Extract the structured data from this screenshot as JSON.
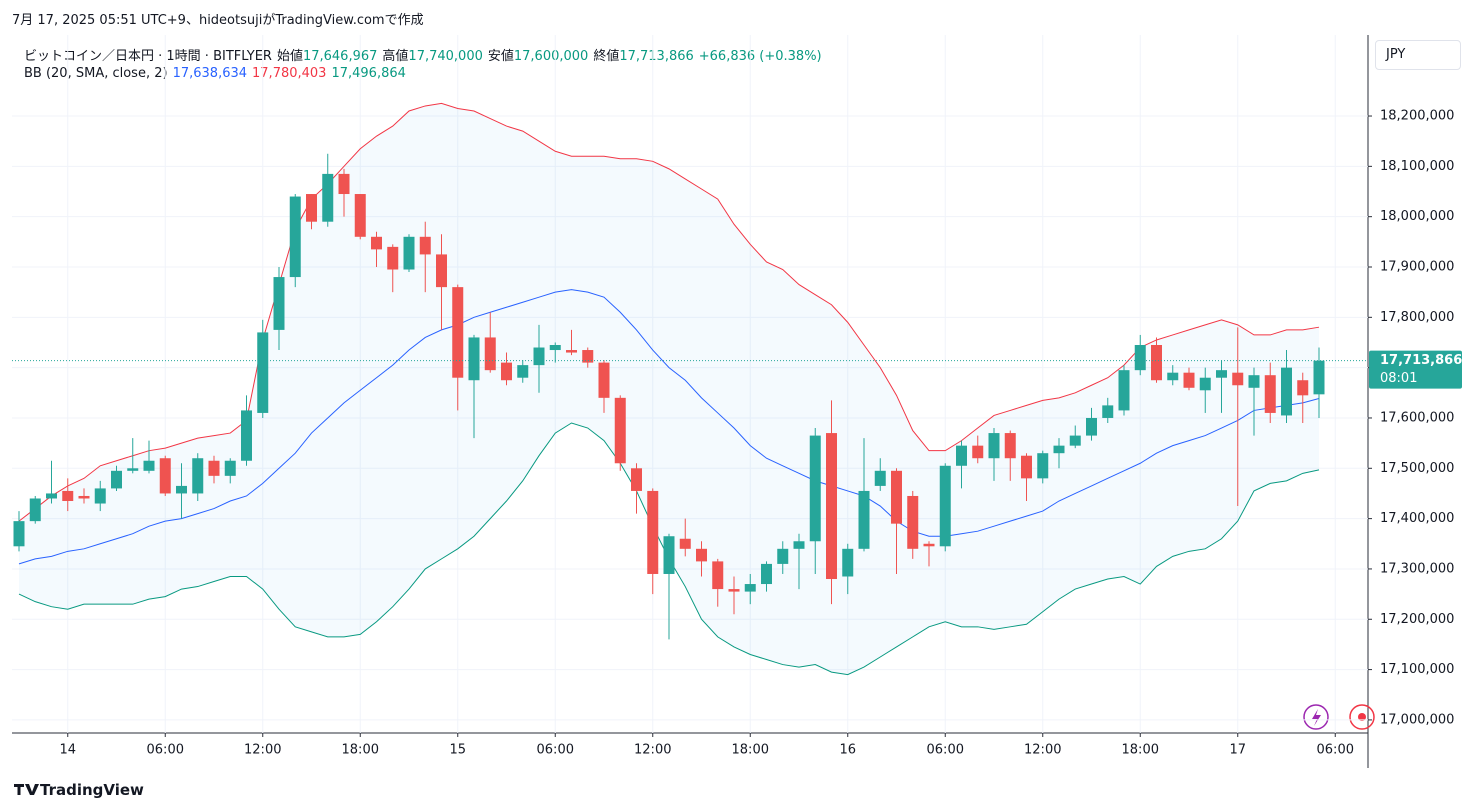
{
  "header": "7月 17, 2025 05:51 UTC+9、hideotsujiがTradingView.comで作成",
  "legend": {
    "symbol": "ビットコイン／日本円 · 1時間 · BITFLYER",
    "fields": [
      {
        "name": "始値",
        "value": "17,646,967"
      },
      {
        "name": "高値",
        "value": "17,740,000"
      },
      {
        "name": "安値",
        "value": "17,600,000"
      },
      {
        "name": "終値",
        "value": "17,713,866"
      }
    ],
    "change": "+66,836 (+0.38%)",
    "color": "#089981"
  },
  "indicator": {
    "name": "BB (20, SMA, close, 2)",
    "values": [
      "17,638,634",
      "17,780,403",
      "17,496,864"
    ]
  },
  "currency": "JPY",
  "price_label": {
    "price": "17,713,866",
    "countdown": "08:01"
  },
  "footer": "TradingView",
  "chart_data": {
    "type": "candlestick",
    "categories": [
      null,
      null,
      null,
      "14",
      null,
      null,
      null,
      null,
      null,
      "06:00",
      null,
      null,
      null,
      null,
      null,
      "12:00",
      null,
      null,
      null,
      null,
      null,
      "18:00",
      null,
      null,
      null,
      null,
      null,
      "15",
      null,
      null,
      null,
      null,
      null,
      "06:00",
      null,
      null,
      null,
      null,
      null,
      "12:00",
      null,
      null,
      null,
      null,
      null,
      "18:00",
      null,
      null,
      null,
      null,
      null,
      "16",
      null,
      null,
      null,
      null,
      null,
      "06:00",
      null,
      null,
      null,
      null,
      null,
      "12:00",
      null,
      null,
      null,
      null,
      null,
      "18:00",
      null,
      null,
      null,
      null,
      null,
      "17",
      null,
      null,
      null,
      null,
      null,
      "06:00"
    ],
    "open": [
      17345000,
      17395000,
      17440000,
      17455000,
      17445000,
      17430000,
      17460000,
      17495000,
      17495000,
      17520000,
      17450000,
      17450000,
      17515000,
      17485000,
      17515000,
      17610000,
      17775000,
      17880000,
      18045000,
      17990000,
      18085000,
      18045000,
      17960000,
      17940000,
      17895000,
      17960000,
      17925000,
      17860000,
      17675000,
      17760000,
      17710000,
      17680000,
      17705000,
      17735000,
      17735000,
      17735000,
      17710000,
      17640000,
      17500000,
      17455000,
      17290000,
      17360000,
      17340000,
      17315000,
      17260000,
      17255000,
      17270000,
      17310000,
      17340000,
      17355000,
      17570000,
      17285000,
      17340000,
      17465000,
      17495000,
      17445000,
      17350000,
      17345000,
      17505000,
      17545000,
      17520000,
      17570000,
      17525000,
      17480000,
      17530000,
      17545000,
      17565000,
      17600000,
      17615000,
      17695000,
      17745000,
      17675000,
      17690000,
      17655000,
      17680000,
      17690000,
      17660000,
      17685000,
      17605000,
      17675000,
      17646967,
      null
    ],
    "high": [
      17415000,
      17445000,
      17515000,
      17480000,
      17460000,
      17475000,
      17505000,
      17560000,
      17555000,
      17525000,
      17510000,
      17530000,
      17525000,
      17520000,
      17645000,
      17795000,
      17900000,
      18045000,
      18045000,
      18125000,
      18095000,
      18045000,
      17970000,
      17945000,
      17965000,
      17990000,
      17965000,
      17865000,
      17765000,
      17810000,
      17730000,
      17715000,
      17785000,
      17750000,
      17775000,
      17740000,
      17715000,
      17645000,
      17510000,
      17460000,
      17370000,
      17400000,
      17355000,
      17320000,
      17285000,
      17290000,
      17315000,
      17355000,
      17370000,
      17580000,
      17635000,
      17350000,
      17560000,
      17520000,
      17500000,
      17455000,
      17355000,
      17510000,
      17555000,
      17565000,
      17580000,
      17575000,
      17530000,
      17535000,
      17560000,
      17585000,
      17620000,
      17640000,
      17705000,
      17765000,
      17760000,
      17705000,
      17700000,
      17700000,
      17715000,
      17780000,
      17700000,
      17710000,
      17735000,
      17690000,
      17740000,
      null
    ],
    "low": [
      17335000,
      17390000,
      17430000,
      17415000,
      17430000,
      17415000,
      17455000,
      17490000,
      17490000,
      17445000,
      17400000,
      17435000,
      17470000,
      17470000,
      17505000,
      17600000,
      17735000,
      17860000,
      17975000,
      17980000,
      18000000,
      17955000,
      17900000,
      17850000,
      17890000,
      17850000,
      17775000,
      17615000,
      17560000,
      17690000,
      17665000,
      17670000,
      17650000,
      17710000,
      17725000,
      17700000,
      17610000,
      17495000,
      17410000,
      17250000,
      17160000,
      17325000,
      17285000,
      17225000,
      17210000,
      17230000,
      17255000,
      17290000,
      17260000,
      17290000,
      17230000,
      17250000,
      17335000,
      17455000,
      17290000,
      17320000,
      17305000,
      17335000,
      17460000,
      17510000,
      17475000,
      17475000,
      17435000,
      17470000,
      17500000,
      17540000,
      17555000,
      17590000,
      17605000,
      17685000,
      17670000,
      17665000,
      17655000,
      17610000,
      17610000,
      17425000,
      17565000,
      17590000,
      17590000,
      17590000,
      17600000,
      null
    ],
    "close": [
      17395000,
      17440000,
      17450000,
      17435000,
      17440000,
      17460000,
      17495000,
      17500000,
      17515000,
      17450000,
      17465000,
      17520000,
      17485000,
      17515000,
      17615000,
      17770000,
      17880000,
      18040000,
      17990000,
      18085000,
      18045000,
      17960000,
      17935000,
      17895000,
      17960000,
      17925000,
      17860000,
      17680000,
      17760000,
      17695000,
      17675000,
      17705000,
      17740000,
      17745000,
      17730000,
      17710000,
      17640000,
      17510000,
      17455000,
      17290000,
      17365000,
      17340000,
      17315000,
      17260000,
      17255000,
      17270000,
      17310000,
      17340000,
      17355000,
      17565000,
      17280000,
      17340000,
      17455000,
      17495000,
      17390000,
      17340000,
      17345000,
      17505000,
      17545000,
      17520000,
      17570000,
      17520000,
      17480000,
      17530000,
      17545000,
      17565000,
      17600000,
      17625000,
      17695000,
      17745000,
      17675000,
      17690000,
      17660000,
      17680000,
      17695000,
      17665000,
      17685000,
      17610000,
      17700000,
      17645000,
      17713866,
      null
    ],
    "up_color": "#26a69a",
    "down_color": "#ef5350",
    "bands": {
      "basis_color": "#2962ff",
      "upper_color": "#f23645",
      "lower_color": "#089981",
      "fill": "#2196f3",
      "basis": [
        17310000,
        17320000,
        17325000,
        17335000,
        17340000,
        17350000,
        17360000,
        17370000,
        17385000,
        17395000,
        17400000,
        17410000,
        17420000,
        17435000,
        17445000,
        17470000,
        17500000,
        17530000,
        17570000,
        17600000,
        17630000,
        17655000,
        17680000,
        17705000,
        17735000,
        17760000,
        17775000,
        17785000,
        17800000,
        17810000,
        17820000,
        17830000,
        17840000,
        17850000,
        17855000,
        17850000,
        17840000,
        17810000,
        17775000,
        17735000,
        17700000,
        17675000,
        17640000,
        17610000,
        17580000,
        17545000,
        17520000,
        17505000,
        17490000,
        17475000,
        17465000,
        17455000,
        17445000,
        17425000,
        17395000,
        17375000,
        17365000,
        17365000,
        17370000,
        17375000,
        17385000,
        17395000,
        17405000,
        17415000,
        17435000,
        17450000,
        17465000,
        17480000,
        17495000,
        17510000,
        17530000,
        17545000,
        17555000,
        17565000,
        17580000,
        17595000,
        17615000,
        17620000,
        17625000,
        17630000,
        17638634,
        null
      ],
      "upper": [
        17395000,
        17420000,
        17445000,
        17465000,
        17480000,
        17505000,
        17515000,
        17525000,
        17535000,
        17540000,
        17550000,
        17560000,
        17565000,
        17570000,
        17595000,
        17755000,
        17865000,
        17975000,
        18035000,
        18065000,
        18100000,
        18135000,
        18160000,
        18180000,
        18210000,
        18220000,
        18225000,
        18215000,
        18210000,
        18195000,
        18180000,
        18170000,
        18150000,
        18130000,
        18120000,
        18120000,
        18120000,
        18115000,
        18115000,
        18110000,
        18095000,
        18075000,
        18055000,
        18035000,
        17985000,
        17945000,
        17910000,
        17895000,
        17865000,
        17845000,
        17825000,
        17790000,
        17745000,
        17700000,
        17645000,
        17575000,
        17535000,
        17535000,
        17555000,
        17580000,
        17605000,
        17615000,
        17625000,
        17635000,
        17640000,
        17650000,
        17665000,
        17680000,
        17705000,
        17740000,
        17755000,
        17765000,
        17775000,
        17785000,
        17795000,
        17785000,
        17765000,
        17765000,
        17775000,
        17775000,
        17780403,
        null
      ],
      "lower": [
        17250000,
        17235000,
        17225000,
        17220000,
        17230000,
        17230000,
        17230000,
        17230000,
        17240000,
        17245000,
        17260000,
        17265000,
        17275000,
        17285000,
        17285000,
        17260000,
        17220000,
        17185000,
        17175000,
        17165000,
        17165000,
        17170000,
        17195000,
        17225000,
        17260000,
        17300000,
        17320000,
        17340000,
        17365000,
        17400000,
        17435000,
        17475000,
        17525000,
        17570000,
        17590000,
        17580000,
        17555000,
        17510000,
        17455000,
        17385000,
        17320000,
        17265000,
        17200000,
        17165000,
        17145000,
        17130000,
        17120000,
        17110000,
        17105000,
        17110000,
        17095000,
        17090000,
        17105000,
        17125000,
        17145000,
        17165000,
        17185000,
        17195000,
        17185000,
        17185000,
        17180000,
        17185000,
        17190000,
        17215000,
        17240000,
        17260000,
        17270000,
        17280000,
        17285000,
        17270000,
        17305000,
        17325000,
        17335000,
        17340000,
        17360000,
        17395000,
        17455000,
        17470000,
        17475000,
        17490000,
        17496864,
        null
      ]
    },
    "ylim": [
      16974000,
      18361000
    ],
    "yticks": [
      {
        "value": 17000000,
        "label": "17,000,000"
      },
      {
        "value": 17100000,
        "label": "17,100,000"
      },
      {
        "value": 17200000,
        "label": "17,200,000"
      },
      {
        "value": 17300000,
        "label": "17,300,000"
      },
      {
        "value": 17400000,
        "label": "17,400,000"
      },
      {
        "value": 17500000,
        "label": "17,500,000"
      },
      {
        "value": 17600000,
        "label": "17,600,000"
      },
      {
        "value": 17700000,
        "label": "17,700,000"
      },
      {
        "value": 17800000,
        "label": "17,800,000"
      },
      {
        "value": 17900000,
        "label": "17,900,000"
      },
      {
        "value": 18000000,
        "label": "18,000,000"
      },
      {
        "value": 18100000,
        "label": "18,100,000"
      },
      {
        "value": 18200000,
        "label": "18,200,000"
      }
    ],
    "grid": true
  }
}
